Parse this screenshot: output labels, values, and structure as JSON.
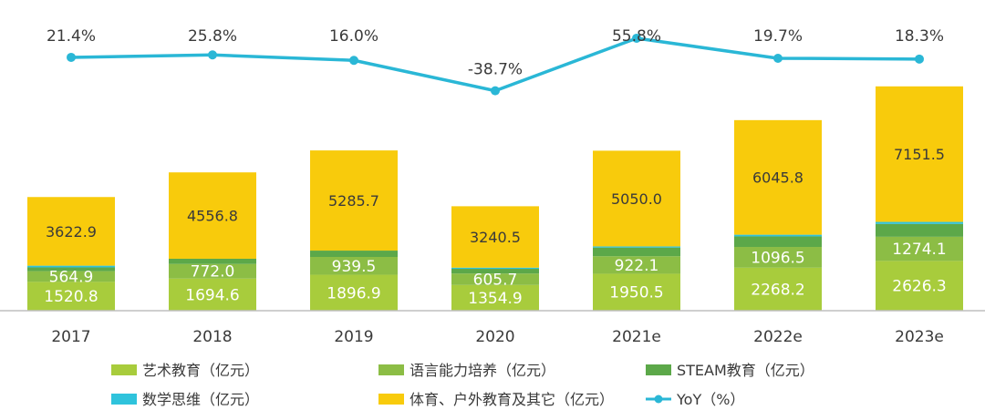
{
  "chart_data": {
    "type": "bar",
    "stacked": true,
    "categories": [
      "2017",
      "2018",
      "2019",
      "2020",
      "2021e",
      "2022e",
      "2023e"
    ],
    "series": [
      {
        "name": "艺术教育（亿元）",
        "color": "#a8cc3c",
        "values": [
          1520.8,
          1694.6,
          1896.9,
          1354.9,
          1950.5,
          2268.2,
          2626.3
        ]
      },
      {
        "name": "语言能力培养（亿元）",
        "color": "#8cbd45",
        "values": [
          564.9,
          772.0,
          939.5,
          605.7,
          922.1,
          1096.5,
          1274.1
        ]
      },
      {
        "name": "STEAM教育（亿元）",
        "color": "#5ca849",
        "values": [
          199,
          275,
          335,
          250,
          460,
          555,
          680
        ]
      },
      {
        "name": "数学思维（亿元）",
        "color": "#2fc3dc",
        "values": [
          90,
          0,
          0,
          60,
          60,
          90,
          105
        ]
      },
      {
        "name": "体育、户外教育及其它（亿元）",
        "color": "#f8cb0c",
        "values": [
          3622.9,
          4556.8,
          5285.7,
          3240.5,
          5050.0,
          6045.8,
          7151.5
        ]
      }
    ],
    "value_labels": [
      [
        "1520.8",
        "1694.6",
        "1896.9",
        "1354.9",
        "1950.5",
        "2268.2",
        "2626.3"
      ],
      [
        "564.9",
        "772.0",
        "939.5",
        "605.7",
        "922.1",
        "1096.5",
        "1274.1"
      ],
      [
        "3622.9",
        "4556.8",
        "5285.7",
        "3240.5",
        "5050.0",
        "6045.8",
        "7151.5"
      ]
    ],
    "yoy": {
      "name": "YoY（%）",
      "color": "#2ab7d6",
      "values": [
        21.4,
        25.8,
        16.0,
        -38.7,
        55.8,
        19.7,
        18.3
      ],
      "labels": [
        "21.4%",
        "25.8%",
        "16.0%",
        "-38.7%",
        "55.8%",
        "19.7%",
        "18.3%"
      ]
    },
    "legend": [
      {
        "label": "艺术教育（亿元）",
        "color": "#a8cc3c",
        "kind": "bar"
      },
      {
        "label": "语言能力培养（亿元）",
        "color": "#8cbd45",
        "kind": "bar"
      },
      {
        "label": "STEAM教育（亿元）",
        "color": "#5ca849",
        "kind": "bar"
      },
      {
        "label": "数学思维（亿元）",
        "color": "#2fc3dc",
        "kind": "bar"
      },
      {
        "label": "体育、户外教育及其它（亿元）",
        "color": "#f8cb0c",
        "kind": "bar"
      },
      {
        "label": "YoY（%）",
        "color": "#2ab7d6",
        "kind": "line"
      }
    ],
    "legend_position": "bottom",
    "grid": false
  }
}
